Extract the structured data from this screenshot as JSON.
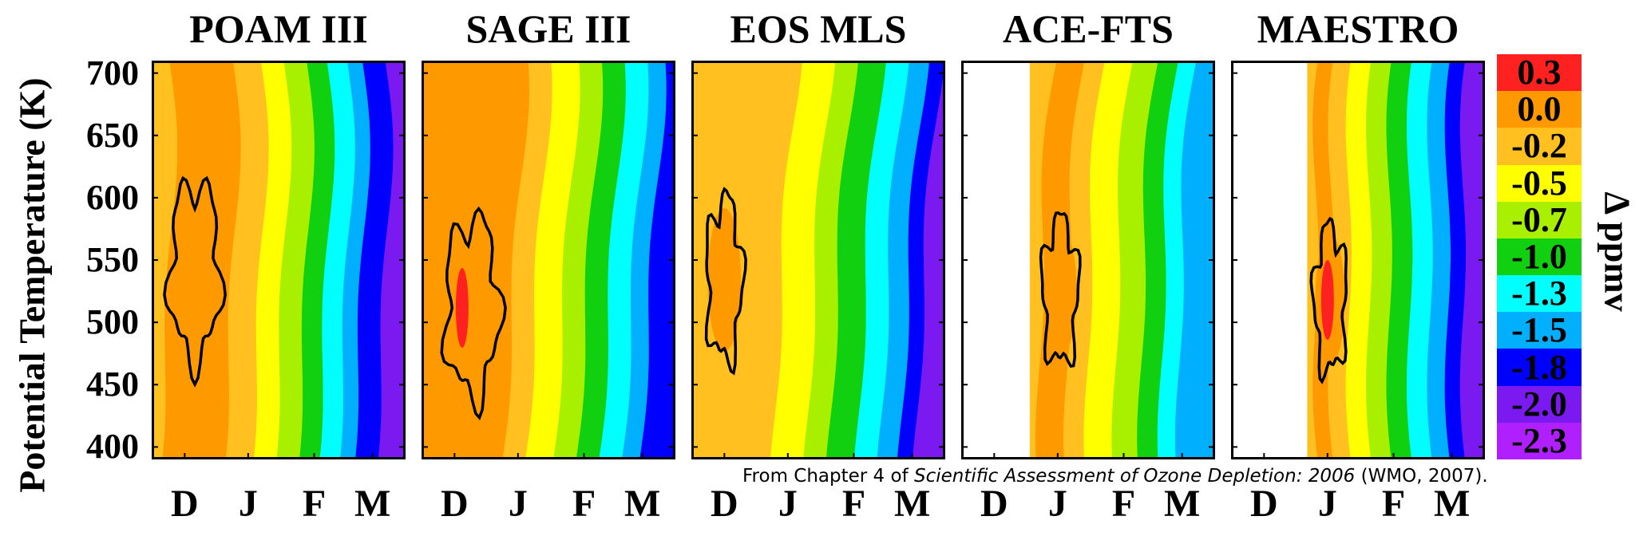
{
  "chart_data": {
    "type": "heatmap",
    "y_axis_label": "Potential Temperature (K)",
    "y_ticks": [
      "700",
      "650",
      "600",
      "550",
      "500",
      "450",
      "400"
    ],
    "y_range": [
      390,
      710
    ],
    "x_ticks": [
      "D",
      "J",
      "F",
      "M"
    ],
    "colorbar": {
      "title": "Δ ppmv",
      "levels": [
        "0.3",
        "0.0",
        "-0.2",
        "-0.5",
        "-0.7",
        "-1.0",
        "-1.3",
        "-1.5",
        "-1.8",
        "-2.0",
        "-2.3"
      ],
      "colors": [
        "#ff2020",
        "#ff9900",
        "#ffc020",
        "#ffff00",
        "#a8f000",
        "#10d010",
        "#00ffff",
        "#00b0ff",
        "#0000ff",
        "#7a1af0",
        "#b020ff"
      ]
    },
    "panels": [
      {
        "title": "POAM III",
        "max_level": 1,
        "left_blank": 0,
        "bands": [
          [
            2,
            0.07
          ],
          [
            1,
            0.32
          ],
          [
            2,
            0.43
          ],
          [
            3,
            0.52
          ],
          [
            4,
            0.61
          ],
          [
            5,
            0.69
          ],
          [
            6,
            0.77
          ],
          [
            7,
            0.83
          ],
          [
            8,
            0.92
          ],
          [
            9,
            1.0
          ]
        ],
        "blob": [
          0.17,
          0.53
        ],
        "blob_amp": [
          0.7,
          0.55
        ],
        "hi_center": [
          0.15,
          0.55
        ]
      },
      {
        "title": "SAGE III",
        "max_level": 0,
        "left_blank": 0,
        "bands": [
          [
            1,
            0.38
          ],
          [
            2,
            0.47
          ],
          [
            3,
            0.58
          ],
          [
            4,
            0.67
          ],
          [
            5,
            0.76
          ],
          [
            6,
            0.85
          ],
          [
            7,
            0.92
          ],
          [
            8,
            1.0
          ]
        ],
        "blob": [
          0.2,
          0.62
        ],
        "blob_amp": [
          0.75,
          0.55
        ],
        "hi_center": [
          0.16,
          0.62
        ]
      },
      {
        "title": "EOS MLS",
        "max_level": 1,
        "left_blank": 0,
        "bands": [
          [
            2,
            0.39
          ],
          [
            3,
            0.52
          ],
          [
            4,
            0.61
          ],
          [
            5,
            0.72
          ],
          [
            6,
            0.81
          ],
          [
            7,
            0.89
          ],
          [
            8,
            0.95
          ],
          [
            9,
            1.0
          ]
        ],
        "blob": [
          0.13,
          0.55
        ],
        "blob_amp": [
          0.5,
          0.5
        ],
        "hi_center": [
          0.13,
          0.55
        ]
      },
      {
        "title": "ACE-FTS",
        "max_level": 1,
        "left_blank": 0.27,
        "bands": [
          [
            2,
            0.36
          ],
          [
            1,
            0.47
          ],
          [
            2,
            0.55
          ],
          [
            3,
            0.66
          ],
          [
            4,
            0.76
          ],
          [
            5,
            0.84
          ],
          [
            6,
            0.91
          ],
          [
            7,
            1.0
          ]
        ],
        "blob": [
          0.39,
          0.58
        ],
        "blob_amp": [
          0.5,
          0.45
        ],
        "hi_center": [
          0.37,
          0.58
        ]
      },
      {
        "title": "MAESTRO",
        "max_level": 0,
        "left_blank": 0.3,
        "bands": [
          [
            2,
            0.37
          ],
          [
            1,
            0.43
          ],
          [
            2,
            0.5
          ],
          [
            3,
            0.58
          ],
          [
            4,
            0.66
          ],
          [
            5,
            0.74
          ],
          [
            6,
            0.82
          ],
          [
            7,
            0.89
          ],
          [
            8,
            0.95
          ],
          [
            9,
            1.0
          ]
        ],
        "blob": [
          0.39,
          0.6
        ],
        "blob_amp": [
          0.45,
          0.45
        ],
        "hi_center": [
          0.38,
          0.6
        ]
      }
    ]
  },
  "credit": {
    "prefix": "From Chapter 4 of ",
    "title": "Scientific Assessment of Ozone Depletion: 2006",
    "suffix": " (WMO, 2007)."
  }
}
